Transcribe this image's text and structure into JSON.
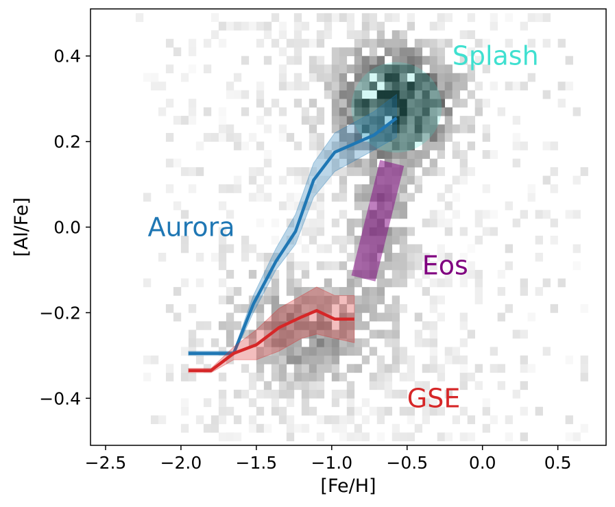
{
  "chart_data": {
    "type": "scatter",
    "title": "",
    "xlabel": "[Fe/H]",
    "ylabel": "[Al/Fe]",
    "xlim": [
      -2.6,
      0.82
    ],
    "ylim": [
      -0.51,
      0.51
    ],
    "xticks": [
      -2.5,
      -2.0,
      -1.5,
      -1.0,
      -0.5,
      0.0,
      0.5
    ],
    "xtick_labels": [
      "−2.5",
      "−2.0",
      "−1.5",
      "−1.0",
      "−0.5",
      "0.0",
      "0.5"
    ],
    "yticks": [
      -0.4,
      -0.2,
      0.0,
      0.2,
      0.4
    ],
    "ytick_labels": [
      "−0.4",
      "−0.2",
      "0.0",
      "0.2",
      "0.4"
    ],
    "grid": false,
    "background_histogram": {
      "description": "2D density histogram of stars (grey scale)",
      "bin_size_feh": 0.1,
      "bin_size_alfe": 0.02,
      "peak_region": {
        "feh": -0.6,
        "alfe": 0.28
      }
    },
    "series": [
      {
        "name": "Aurora",
        "color": "#1f77b4",
        "x": [
          -1.95,
          -1.65,
          -1.52,
          -1.37,
          -1.24,
          -1.12,
          -0.98,
          -0.72,
          -0.57
        ],
        "y": [
          -0.295,
          -0.295,
          -0.18,
          -0.08,
          -0.01,
          0.11,
          0.175,
          0.215,
          0.255
        ],
        "band_lower": [
          -0.3,
          -0.3,
          -0.2,
          -0.1,
          -0.04,
          0.07,
          0.13,
          0.18,
          0.21
        ],
        "band_upper": [
          -0.29,
          -0.29,
          -0.16,
          -0.05,
          0.03,
          0.15,
          0.22,
          0.27,
          0.31
        ]
      },
      {
        "name": "GSE",
        "color": "#d62728",
        "x": [
          -1.95,
          -1.8,
          -1.65,
          -1.5,
          -1.35,
          -1.2,
          -1.1,
          -0.98,
          -0.85
        ],
        "y": [
          -0.335,
          -0.335,
          -0.295,
          -0.275,
          -0.235,
          -0.21,
          -0.195,
          -0.215,
          -0.215
        ],
        "band_lower": [
          -0.34,
          -0.34,
          -0.31,
          -0.31,
          -0.29,
          -0.26,
          -0.25,
          -0.26,
          -0.27
        ],
        "band_upper": [
          -0.33,
          -0.33,
          -0.28,
          -0.24,
          -0.19,
          -0.16,
          -0.14,
          -0.16,
          -0.16
        ]
      }
    ],
    "regions": [
      {
        "name": "Splash",
        "shape": "circle",
        "color": "#40e0d0",
        "center_feh": -0.57,
        "center_alfe": 0.28,
        "radius_feh": 0.3
      },
      {
        "name": "Eos",
        "shape": "strip",
        "color": "#800080",
        "from": {
          "feh": -0.79,
          "alfe": -0.12
        },
        "to": {
          "feh": -0.6,
          "alfe": 0.15
        }
      }
    ],
    "annotations": [
      {
        "text": "Splash",
        "color": "#40e0d0",
        "feh": -0.2,
        "alfe": 0.4
      },
      {
        "text": "Aurora",
        "color": "#1f77b4",
        "feh": -2.22,
        "alfe": 0.0
      },
      {
        "text": "Eos",
        "color": "#800080",
        "feh": -0.4,
        "alfe": -0.09
      },
      {
        "text": "GSE",
        "color": "#d62728",
        "feh": -0.5,
        "alfe": -0.4
      }
    ]
  }
}
